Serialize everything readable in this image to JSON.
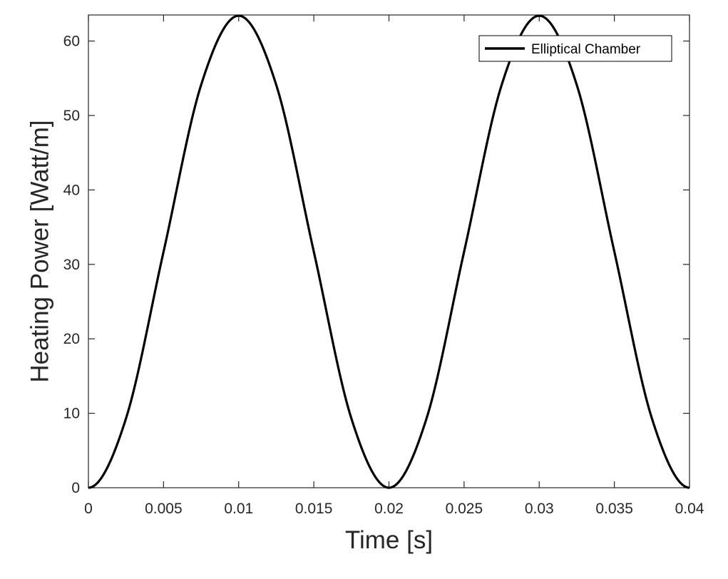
{
  "chart_data": {
    "type": "line",
    "title": "",
    "xlabel": "Time [s]",
    "ylabel": "Heating Power [Watt/m]",
    "xlim": [
      0,
      0.04
    ],
    "ylim": [
      0,
      63.5
    ],
    "x_ticks": [
      0,
      0.005,
      0.01,
      0.015,
      0.02,
      0.025,
      0.03,
      0.035,
      0.04
    ],
    "x_tick_labels": [
      "0",
      "0.005",
      "0.01",
      "0.015",
      "0.02",
      "0.025",
      "0.03",
      "0.035",
      "0.04"
    ],
    "y_ticks": [
      0,
      10,
      20,
      30,
      40,
      50,
      60
    ],
    "y_tick_labels": [
      "0",
      "10",
      "20",
      "30",
      "40",
      "50",
      "60"
    ],
    "grid": false,
    "box": true,
    "legend": {
      "position": "top-right"
    },
    "series": [
      {
        "name": "Elliptical Chamber",
        "color": "#000000",
        "x": [
          0,
          0.0025,
          0.005,
          0.0075,
          0.01,
          0.0125,
          0.015,
          0.0175,
          0.02,
          0.0225,
          0.025,
          0.0275,
          0.03,
          0.0325,
          0.035,
          0.0375,
          0.04
        ],
        "y": [
          0,
          9.3,
          31.7,
          54.1,
          63.4,
          54.1,
          31.7,
          9.3,
          0,
          9.3,
          31.7,
          54.1,
          63.4,
          54.1,
          31.7,
          9.3,
          0
        ]
      }
    ]
  }
}
